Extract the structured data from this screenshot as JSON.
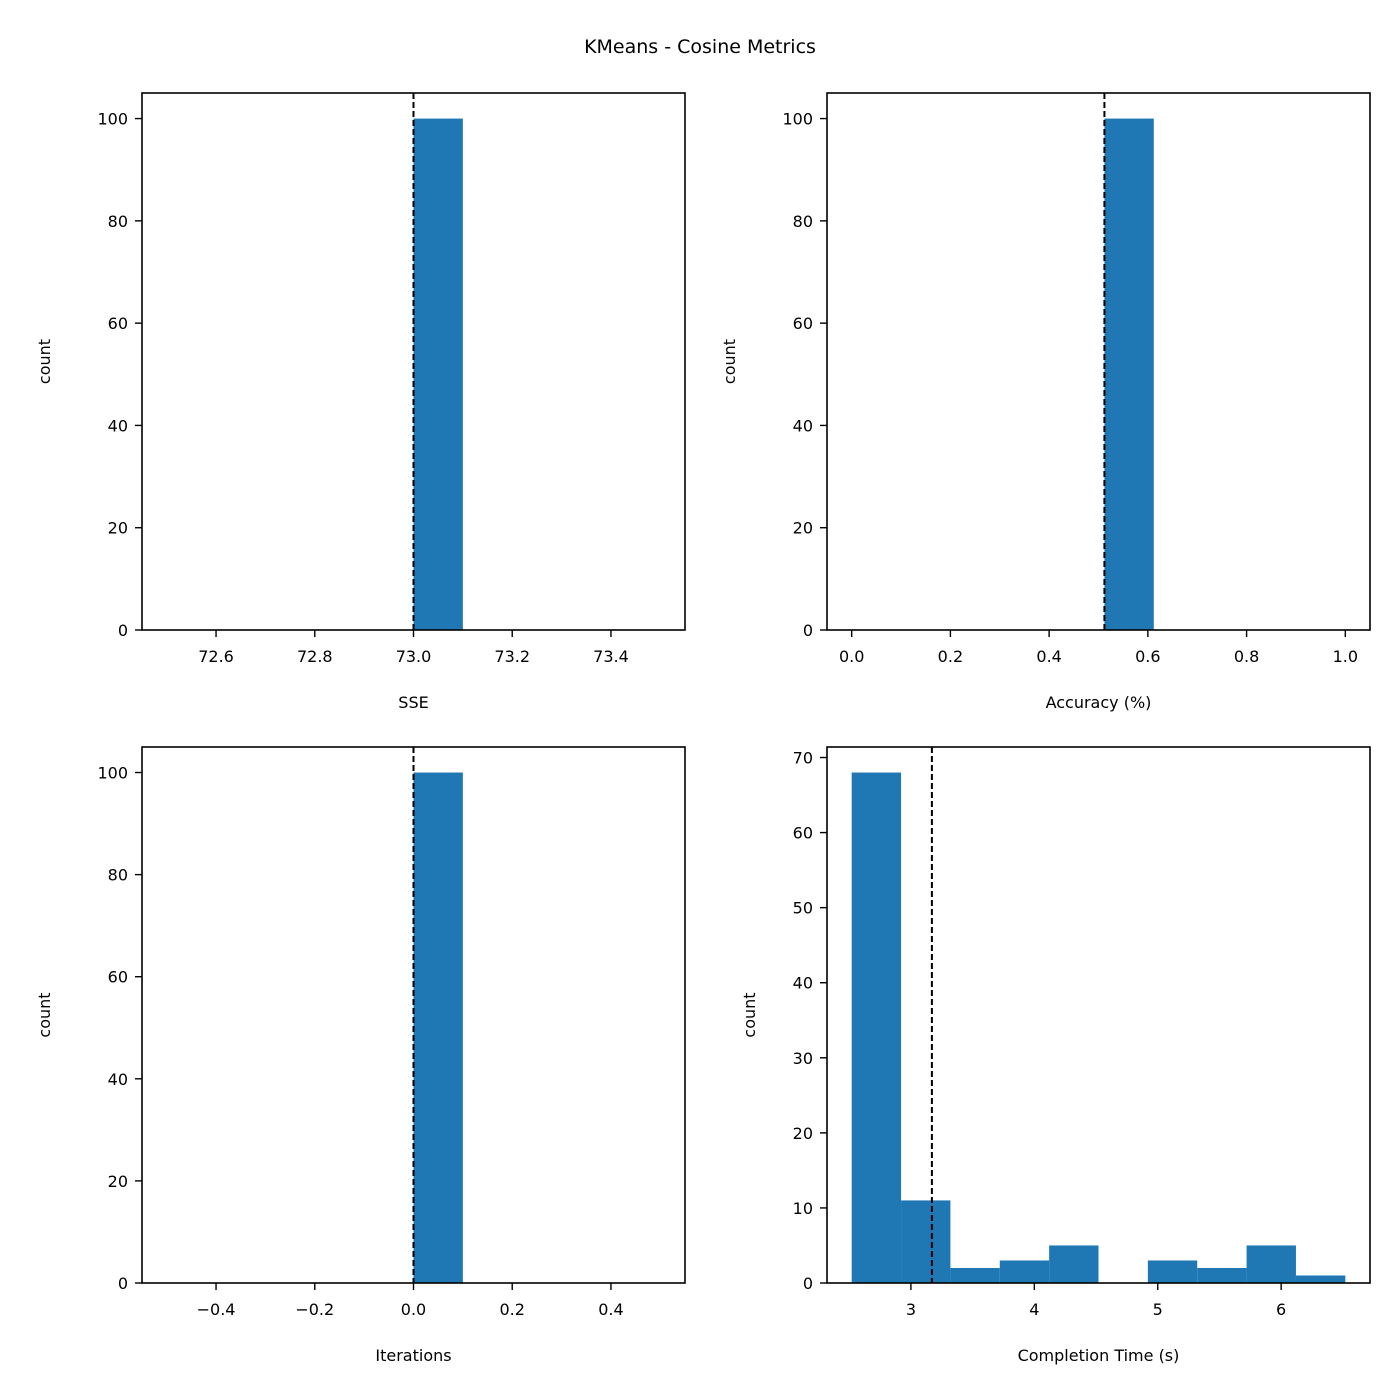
{
  "figure": {
    "title": "KMeans - Cosine Metrics",
    "bar_color": "#1f77b4",
    "line_color": "#000000"
  },
  "chart_data": [
    {
      "type": "histogram",
      "xlabel": "SSE",
      "ylabel": "count",
      "xlim": [
        72.45,
        73.55
      ],
      "ylim": [
        0,
        105
      ],
      "xticks": [
        72.6,
        72.8,
        73.0,
        73.2,
        73.4
      ],
      "xtick_labels": [
        "72.6",
        "72.8",
        "73.0",
        "73.2",
        "73.4"
      ],
      "yticks": [
        0,
        20,
        40,
        60,
        80,
        100
      ],
      "ytick_labels": [
        "0",
        "20",
        "40",
        "60",
        "80",
        "100"
      ],
      "bins": [
        {
          "x0": 73.0,
          "x1": 73.1,
          "count": 100
        }
      ],
      "mean_line": 73.0
    },
    {
      "type": "histogram",
      "xlabel": "Accuracy (%)",
      "ylabel": "count",
      "xlim": [
        -0.05,
        1.05
      ],
      "ylim": [
        0,
        105
      ],
      "xticks": [
        0.0,
        0.2,
        0.4,
        0.6,
        0.8,
        1.0
      ],
      "xtick_labels": [
        "0.0",
        "0.2",
        "0.4",
        "0.6",
        "0.8",
        "1.0"
      ],
      "yticks": [
        0,
        20,
        40,
        60,
        80,
        100
      ],
      "ytick_labels": [
        "0",
        "20",
        "40",
        "60",
        "80",
        "100"
      ],
      "bins": [
        {
          "x0": 0.512,
          "x1": 0.612,
          "count": 100
        }
      ],
      "mean_line": 0.512
    },
    {
      "type": "histogram",
      "xlabel": "Iterations",
      "ylabel": "count",
      "xlim": [
        -0.55,
        0.55
      ],
      "ylim": [
        0,
        105
      ],
      "xticks": [
        -0.4,
        -0.2,
        0.0,
        0.2,
        0.4
      ],
      "xtick_labels": [
        "−0.4",
        "−0.2",
        "0.0",
        "0.2",
        "0.4"
      ],
      "yticks": [
        0,
        20,
        40,
        60,
        80,
        100
      ],
      "ytick_labels": [
        "0",
        "20",
        "40",
        "60",
        "80",
        "100"
      ],
      "bins": [
        {
          "x0": 0.0,
          "x1": 0.1,
          "count": 100
        }
      ],
      "mean_line": 0.0
    },
    {
      "type": "histogram",
      "xlabel": "Completion Time (s)",
      "ylabel": "count",
      "xlim": [
        2.32,
        6.72
      ],
      "ylim": [
        0,
        71.4
      ],
      "xticks": [
        3,
        4,
        5,
        6
      ],
      "xtick_labels": [
        "3",
        "4",
        "5",
        "6"
      ],
      "yticks": [
        0,
        10,
        20,
        30,
        40,
        50,
        60,
        70
      ],
      "ytick_labels": [
        "0",
        "10",
        "20",
        "30",
        "40",
        "50",
        "60",
        "70"
      ],
      "bins": [
        {
          "x0": 2.52,
          "x1": 2.92,
          "count": 68
        },
        {
          "x0": 2.92,
          "x1": 3.32,
          "count": 11
        },
        {
          "x0": 3.32,
          "x1": 3.72,
          "count": 2
        },
        {
          "x0": 3.72,
          "x1": 4.12,
          "count": 3
        },
        {
          "x0": 4.12,
          "x1": 4.52,
          "count": 5
        },
        {
          "x0": 4.52,
          "x1": 4.92,
          "count": 0
        },
        {
          "x0": 4.92,
          "x1": 5.32,
          "count": 3
        },
        {
          "x0": 5.32,
          "x1": 5.72,
          "count": 2
        },
        {
          "x0": 5.72,
          "x1": 6.12,
          "count": 5
        },
        {
          "x0": 6.12,
          "x1": 6.52,
          "count": 1
        }
      ],
      "mean_line": 3.17
    }
  ]
}
